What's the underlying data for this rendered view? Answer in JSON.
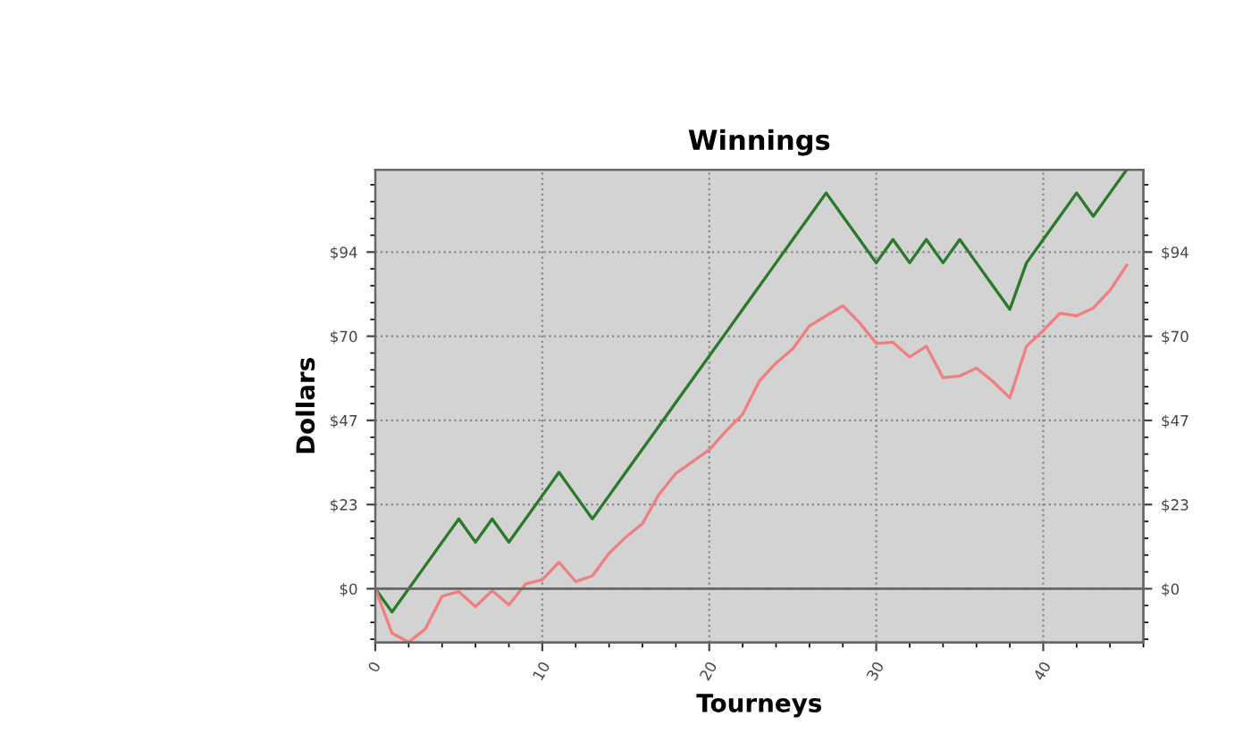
{
  "chart_data": {
    "type": "line",
    "title": "Winnings",
    "xlabel": "Tourneys",
    "ylabel": "Dollars",
    "x": [
      0,
      1,
      2,
      3,
      4,
      5,
      6,
      7,
      8,
      9,
      10,
      11,
      12,
      13,
      14,
      15,
      16,
      17,
      18,
      19,
      20,
      21,
      22,
      23,
      24,
      25,
      26,
      27,
      28,
      29,
      30,
      31,
      32,
      33,
      34,
      35,
      36,
      37,
      38,
      39,
      40,
      41,
      42,
      43,
      44,
      45
    ],
    "series": [
      {
        "color": "#2a7a2a",
        "values": [
          0,
          -6.5,
          0,
          6.5,
          13,
          19.5,
          13,
          19.5,
          13,
          19.5,
          26,
          32.5,
          26,
          19.5,
          26,
          32.5,
          39,
          45.5,
          52,
          58.5,
          65,
          71.5,
          78,
          84.5,
          91,
          97.5,
          104,
          110.5,
          104,
          97.5,
          91,
          97.5,
          91,
          97.5,
          91,
          97.5,
          91,
          84.5,
          78,
          91,
          97.5,
          104,
          110.5,
          104,
          110.5,
          117
        ]
      },
      {
        "color": "#f08080",
        "values": [
          0,
          -12.4,
          -14.9,
          -11.2,
          -2.1,
          -0.8,
          -5,
          -0.5,
          -4.5,
          1.3,
          2.5,
          7.4,
          2,
          3.6,
          9.9,
          14.4,
          18.2,
          26.4,
          32.2,
          35.5,
          38.8,
          44,
          48.7,
          58,
          63,
          67,
          73.4,
          76.2,
          79,
          74.3,
          68.5,
          68.8,
          64.7,
          67.7,
          58.9,
          59.4,
          61.6,
          57.8,
          53.3,
          67.7,
          72.1,
          76.9,
          76.2,
          78.4,
          83.3,
          90.3
        ]
      }
    ],
    "xlim": [
      0,
      46
    ],
    "xticks": [
      0,
      10,
      20,
      30,
      40
    ],
    "ylim": [
      -15,
      117
    ],
    "yticks": [
      {
        "value": 0,
        "label": "$0"
      },
      {
        "value": 23.5,
        "label": "$23"
      },
      {
        "value": 47,
        "label": "$47"
      },
      {
        "value": 70.5,
        "label": "$70"
      },
      {
        "value": 94,
        "label": "$94"
      }
    ],
    "y2lim": [
      -15,
      117
    ],
    "y2ticks": [
      {
        "value": 0,
        "label": "$0"
      },
      {
        "value": 23.5,
        "label": "$23"
      },
      {
        "value": 47,
        "label": "$47"
      },
      {
        "value": 70.5,
        "label": "$70"
      },
      {
        "value": 94,
        "label": "$94"
      }
    ],
    "ref_lines": [
      {
        "axis": "y",
        "value": 0,
        "color": "#666666"
      }
    ],
    "grid": true,
    "legend": false,
    "marker": "none",
    "line_style": "solid"
  }
}
